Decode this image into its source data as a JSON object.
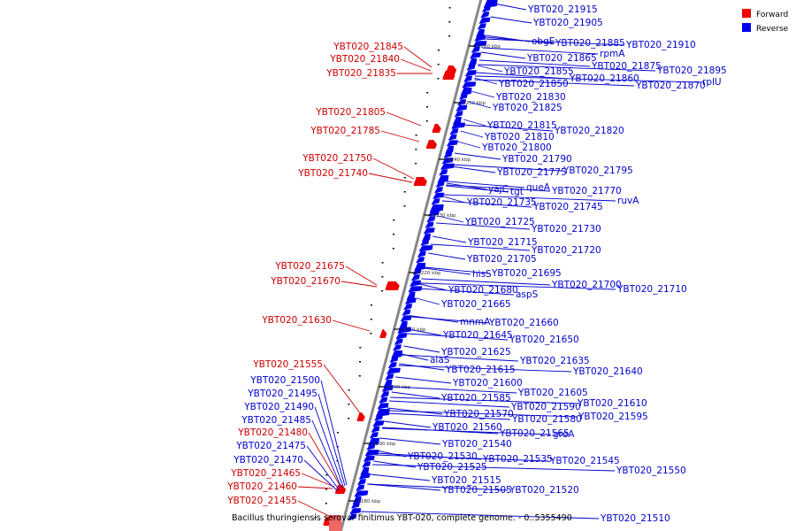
{
  "caption": "Bacillus thuringiensis serovar finitimus YBT-020, complete genome. - 0..5355490",
  "legend": {
    "forward": {
      "label": "Forward",
      "color": "#ee0000"
    },
    "reverse": {
      "label": "Reverse",
      "color": "#0000ee"
    }
  },
  "ticks": [
    "4260 kbp",
    "4250 kbp",
    "4240 kbp",
    "4230 kbp",
    "4220 kbp",
    "4210 kbp",
    "4200 kbp",
    "4190 kbp",
    "4180 kbp"
  ],
  "forward_genes": [
    "YBT020_21845",
    "YBT020_21840",
    "YBT020_21835",
    "YBT020_21805",
    "YBT020_21785",
    "YBT020_21750",
    "YBT020_21740",
    "YBT020_21675",
    "YBT020_21670",
    "YBT020_21630",
    "YBT020_21555",
    "YBT020_21480",
    "YBT020_21465",
    "YBT020_21460",
    "YBT020_21455"
  ],
  "reverse_genes_left": [
    "YBT020_21500",
    "YBT020_21495",
    "YBT020_21490",
    "YBT020_21485",
    "YBT020_21475",
    "YBT020_21470"
  ],
  "reverse_genes_right": [
    "YBT020_21915",
    "YBT020_21905",
    "obgE",
    "YBT020_21885",
    "YBT020_21910",
    "rpmA",
    "YBT020_21865",
    "YBT020_21875",
    "YBT020_21895",
    "YBT020_21855",
    "YBT020_21860",
    "YBT020_21850",
    "YBT020_21870",
    "rplU",
    "YBT020_21830",
    "YBT020_21825",
    "YBT020_21815",
    "YBT020_21820",
    "YBT020_21810",
    "YBT020_21800",
    "YBT020_21790",
    "YBT020_21775",
    "YBT020_21795",
    "yajC",
    "tgt",
    "queA",
    "YBT020_21770",
    "ruvA",
    "YBT020_21735",
    "YBT020_21745",
    "YBT020_21725",
    "YBT020_21730",
    "YBT020_21715",
    "YBT020_21720",
    "YBT020_21705",
    "hisS",
    "YBT020_21695",
    "YBT020_21700",
    "YBT020_21710",
    "YBT020_21680",
    "aspS",
    "YBT020_21665",
    "mnmA",
    "YBT020_21660",
    "YBT020_21645",
    "YBT020_21650",
    "YBT020_21625",
    "alaS",
    "YBT020_21635",
    "YBT020_21615",
    "YBT020_21640",
    "YBT020_21600",
    "YBT020_21605",
    "YBT020_21585",
    "YBT020_21610",
    "YBT020_21590",
    "YBT020_21595",
    "YBT020_21570",
    "YBT020_21580",
    "YBT020_21560",
    "YBT020_21565",
    "greA",
    "YBT020_21540",
    "YBT020_21530",
    "YBT020_21535",
    "YBT020_21545",
    "YBT020_21525",
    "YBT020_21550",
    "YBT020_21515",
    "YBT020_21505",
    "YBT020_21520",
    "YBT020_21510"
  ]
}
